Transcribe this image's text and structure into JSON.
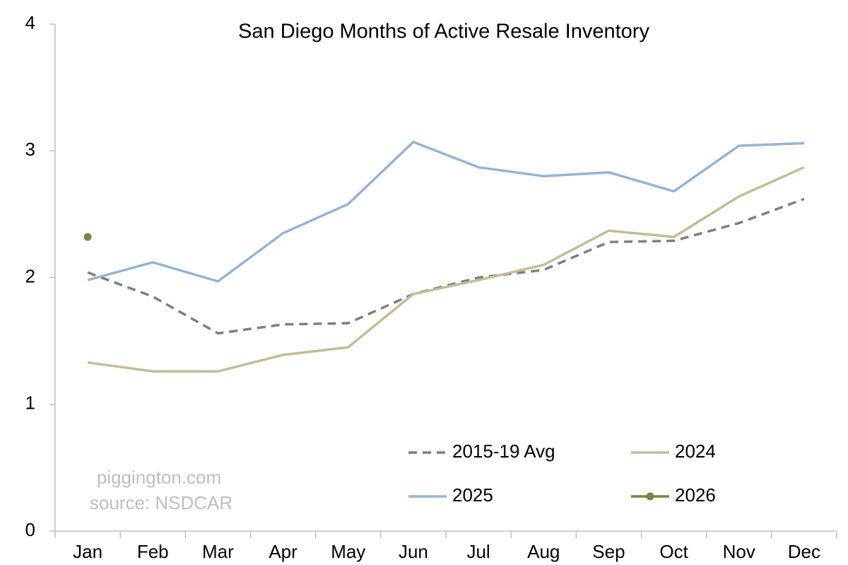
{
  "chart_data": {
    "type": "line",
    "title": "San Diego Months of Active Resale Inventory",
    "categories": [
      "Jan",
      "Feb",
      "Mar",
      "Apr",
      "May",
      "Jun",
      "Jul",
      "Aug",
      "Sep",
      "Oct",
      "Nov",
      "Dec"
    ],
    "series": [
      {
        "name": "2015-19 Avg",
        "color": "#7f7f7f",
        "line_style": "dashed",
        "values": [
          2.04,
          1.85,
          1.56,
          1.63,
          1.64,
          1.87,
          2.0,
          2.06,
          2.28,
          2.29,
          2.43,
          2.62
        ]
      },
      {
        "name": "2024",
        "color": "#c4bc96",
        "line_style": "solid",
        "values": [
          1.33,
          1.26,
          1.26,
          1.39,
          1.45,
          1.87,
          1.98,
          2.1,
          2.37,
          2.32,
          2.64,
          2.87
        ]
      },
      {
        "name": "2025",
        "color": "#95b3d7",
        "line_style": "solid",
        "values": [
          1.98,
          2.12,
          1.97,
          2.35,
          2.58,
          3.07,
          2.87,
          2.8,
          2.83,
          2.68,
          3.04,
          3.06
        ]
      },
      {
        "name": "2026",
        "color": "#6e8b3d",
        "line_style": "solid",
        "markers": true,
        "values": [
          2.32,
          null,
          null,
          null,
          null,
          null,
          null,
          null,
          null,
          null,
          null,
          null
        ]
      }
    ],
    "ylim": [
      0,
      4
    ],
    "yticks": [
      0,
      1,
      2,
      3,
      4
    ],
    "grid": false,
    "legend": "bottom-right",
    "annotations": [
      "piggington.com",
      "source: NSDCAR"
    ]
  }
}
